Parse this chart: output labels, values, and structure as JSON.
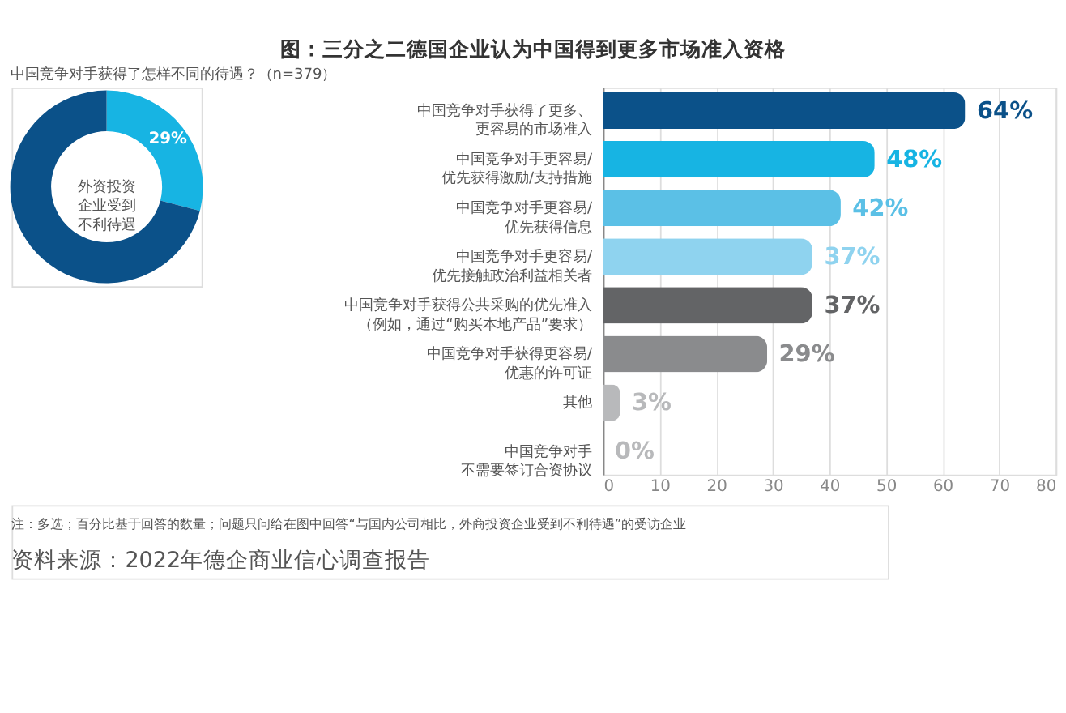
{
  "chart_data": [
    {
      "type": "donut",
      "title": "图：三分之二德国企业认为中国得到更多市场准入资格",
      "subtitle": "中国竞争对手获得了怎样不同的待遇？（n=379）",
      "categories": [
        null,
        null
      ],
      "values": [
        29,
        71
      ],
      "colors": [
        "#17b4e3",
        "#0b5189"
      ],
      "value_labels": [
        "29%",
        null
      ],
      "annotations": [
        "外资投资企业受到不利待遇"
      ]
    },
    {
      "type": "bar",
      "orientation": "horizontal",
      "categories": [
        "中国竞争对手获得了更多、更容易的市场准入",
        "中国竞争对手更容易/优先获得激励/支持措施",
        "中国竞争对手更容易/优先获得信息",
        "中国竞争对手更容易/优先接触政治利益相关者",
        "中国竞争对手获得公共采购的优先准入（例如，通过“购买本地产品”要求）",
        "中国竞争对手获得更容易/优惠的许可证",
        "其他",
        "中国竞争对手不需要签订合资协议"
      ],
      "values": [
        64,
        48,
        42,
        37,
        37,
        29,
        3,
        0
      ],
      "colors": [
        "#0b5189",
        "#17b4e3",
        "#5bc0e6",
        "#8fd3ef",
        "#636466",
        "#8a8b8d",
        "#b8b9bb",
        "#b8b9bb"
      ],
      "value_labels": [
        "64%",
        "48%",
        "42%",
        "37%",
        "37%",
        "29%",
        "3%",
        "0%"
      ],
      "xlim": [
        0,
        80
      ],
      "xticks": [
        0,
        10,
        20,
        30,
        40,
        50,
        60,
        70,
        80
      ],
      "grid": "x",
      "annotations": [
        "注：多选；百分比基于回答的数量；问题只问给在图中回答“与国内公司相比，外商投资企业受到不利待遇”的受访企业",
        "资料来源：2022年德企商业信心调查报告"
      ]
    }
  ]
}
